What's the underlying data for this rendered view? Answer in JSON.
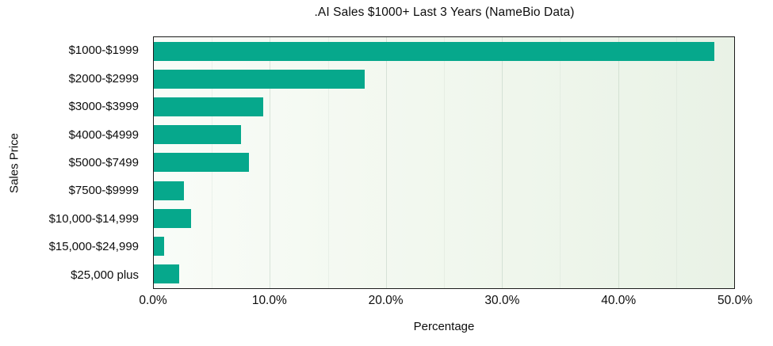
{
  "chart_data": {
    "type": "bar",
    "orientation": "horizontal",
    "title": ".AI Sales $1000+ Last 3 Years (NameBio Data)",
    "xlabel": "Percentage",
    "ylabel": "Sales Price",
    "categories": [
      "$1000-$1999",
      "$2000-$2999",
      "$3000-$3999",
      "$4000-$4999",
      "$5000-$7499",
      "$7500-$9999",
      "$10,000-$14,999",
      "$15,000-$24,999",
      "$25,000 plus"
    ],
    "values": [
      48.3,
      18.2,
      9.4,
      7.5,
      8.2,
      2.6,
      3.2,
      0.9,
      2.2
    ],
    "xlim": [
      0,
      50
    ],
    "x_ticks": [
      "0.0%",
      "10.0%",
      "20.0%",
      "30.0%",
      "40.0%",
      "50.0%"
    ],
    "grid": "vertical, major every 10%, faint minor every 5%",
    "legend_position": "none",
    "bar_color": "#06a88c",
    "plot_border_color": "#1c1c1c",
    "plot_bg_left": "#f9fcf8",
    "plot_bg_right": "#e9f2e6"
  }
}
